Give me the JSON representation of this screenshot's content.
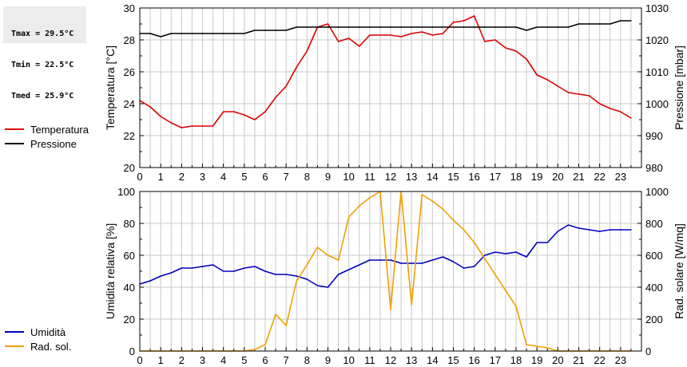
{
  "stats": {
    "tmax": "Tmax = 29.5°C",
    "tmin": "Tmin = 22.5°C",
    "tmed": "Tmed = 25.9°C"
  },
  "colors": {
    "temperature": "#dd0000",
    "pressure": "#000000",
    "humidity": "#0000bb",
    "radiation": "#f0a000",
    "grid": "#c8c8c8"
  },
  "chart_data": [
    {
      "type": "line",
      "x_ticks": [
        "0",
        "1",
        "2",
        "3",
        "4",
        "5",
        "6",
        "7",
        "8",
        "9",
        "10",
        "11",
        "12",
        "13",
        "14",
        "15",
        "16",
        "17",
        "18",
        "19",
        "20",
        "21",
        "22",
        "23"
      ],
      "xlim": [
        0,
        24
      ],
      "ylabel": "Temperatura [°C]",
      "ylim": [
        20,
        30
      ],
      "y_ticks": [
        "20",
        "22",
        "24",
        "26",
        "28",
        "30"
      ],
      "y2label": "Pressione [mbar]",
      "y2lim": [
        980,
        1030
      ],
      "y2_ticks": [
        "980",
        "990",
        "1000",
        "1010",
        "1020",
        "1030"
      ],
      "grid": true,
      "legend_position": "left",
      "series": [
        {
          "name": "Temperatura",
          "axis": "left",
          "x": [
            0,
            0.5,
            1,
            1.5,
            2,
            2.5,
            3,
            3.5,
            4,
            4.5,
            5,
            5.5,
            6,
            6.5,
            7,
            7.5,
            8,
            8.5,
            9,
            9.5,
            10,
            10.5,
            11,
            11.5,
            12,
            12.5,
            13,
            13.5,
            14,
            14.5,
            15,
            15.5,
            16,
            16.5,
            17,
            17.5,
            18,
            18.5,
            19,
            19.5,
            20,
            20.5,
            21,
            21.5,
            22,
            22.5,
            23,
            23.5
          ],
          "values": [
            24.2,
            23.8,
            23.2,
            22.8,
            22.5,
            22.6,
            22.6,
            22.6,
            23.5,
            23.5,
            23.3,
            23.0,
            23.5,
            24.4,
            25.1,
            26.3,
            27.3,
            28.8,
            29.0,
            27.9,
            28.1,
            27.6,
            28.3,
            28.3,
            28.3,
            28.2,
            28.4,
            28.5,
            28.3,
            28.4,
            29.1,
            29.2,
            29.5,
            27.9,
            28.0,
            27.5,
            27.3,
            26.8,
            25.8,
            25.5,
            25.1,
            24.7,
            24.6,
            24.5,
            24.0,
            23.7,
            23.5,
            23.1
          ]
        },
        {
          "name": "Pressione",
          "axis": "right",
          "x": [
            0,
            0.5,
            1,
            1.5,
            2,
            2.5,
            3,
            3.5,
            4,
            4.5,
            5,
            5.5,
            6,
            6.5,
            7,
            7.5,
            8,
            8.5,
            9,
            9.5,
            10,
            10.5,
            11,
            11.5,
            12,
            12.5,
            13,
            13.5,
            14,
            14.5,
            15,
            15.5,
            16,
            16.5,
            17,
            17.5,
            18,
            18.5,
            19,
            19.5,
            20,
            20.5,
            21,
            21.5,
            22,
            22.5,
            23,
            23.5
          ],
          "values": [
            1022,
            1022,
            1021,
            1022,
            1022,
            1022,
            1022,
            1022,
            1022,
            1022,
            1022,
            1023,
            1023,
            1023,
            1023,
            1024,
            1024,
            1024,
            1024,
            1024,
            1024,
            1024,
            1024,
            1024,
            1024,
            1024,
            1024,
            1024,
            1024,
            1024,
            1024,
            1024,
            1024,
            1024,
            1024,
            1024,
            1024,
            1023,
            1024,
            1024,
            1024,
            1024,
            1025,
            1025,
            1025,
            1025,
            1026,
            1026
          ]
        }
      ]
    },
    {
      "type": "line",
      "x_ticks": [
        "0",
        "1",
        "2",
        "3",
        "4",
        "5",
        "6",
        "7",
        "8",
        "9",
        "10",
        "11",
        "12",
        "13",
        "14",
        "15",
        "16",
        "17",
        "18",
        "19",
        "20",
        "21",
        "22",
        "23"
      ],
      "xlim": [
        0,
        24
      ],
      "ylabel": "Umidità relativa [%]",
      "ylim": [
        0,
        100
      ],
      "y_ticks": [
        "0",
        "20",
        "40",
        "60",
        "80",
        "100"
      ],
      "y2label": "Rad. solare [W/mq]",
      "y2lim": [
        0,
        1000
      ],
      "y2_ticks": [
        "0",
        "200",
        "400",
        "600",
        "800",
        "1000"
      ],
      "grid": true,
      "legend_position": "left",
      "series": [
        {
          "name": "Umidità",
          "axis": "left",
          "x": [
            0,
            0.5,
            1,
            1.5,
            2,
            2.5,
            3,
            3.5,
            4,
            4.5,
            5,
            5.5,
            6,
            6.5,
            7,
            7.5,
            8,
            8.5,
            9,
            9.5,
            10,
            10.5,
            11,
            11.5,
            12,
            12.5,
            13,
            13.5,
            14,
            14.5,
            15,
            15.5,
            16,
            16.5,
            17,
            17.5,
            18,
            18.5,
            19,
            19.5,
            20,
            20.5,
            21,
            21.5,
            22,
            22.5,
            23,
            23.5
          ],
          "values": [
            42,
            44,
            47,
            49,
            52,
            52,
            53,
            54,
            50,
            50,
            52,
            53,
            50,
            48,
            48,
            47,
            45,
            41,
            40,
            48,
            51,
            54,
            57,
            57,
            57,
            55,
            55,
            55,
            57,
            59,
            56,
            52,
            53,
            60,
            62,
            61,
            62,
            59,
            68,
            68,
            75,
            79,
            77,
            76,
            75,
            76,
            76,
            76
          ]
        },
        {
          "name": "Rad. sol.",
          "axis": "right",
          "x": [
            0,
            0.5,
            1,
            1.5,
            2,
            2.5,
            3,
            3.5,
            4,
            4.5,
            5,
            5.5,
            6,
            6.5,
            7,
            7.5,
            8,
            8.5,
            9,
            9.5,
            10,
            10.5,
            11,
            11.5,
            12,
            12.5,
            13,
            13.5,
            14,
            14.5,
            15,
            15.5,
            16,
            16.5,
            17,
            17.5,
            18,
            18.5,
            19,
            19.5,
            20,
            20.5,
            21,
            21.5,
            22,
            22.5,
            23,
            23.5
          ],
          "values": [
            0,
            0,
            0,
            0,
            0,
            0,
            0,
            0,
            0,
            0,
            0,
            10,
            40,
            230,
            160,
            440,
            540,
            650,
            600,
            570,
            840,
            910,
            960,
            1000,
            260,
            1000,
            290,
            980,
            940,
            890,
            820,
            760,
            680,
            580,
            480,
            380,
            280,
            40,
            30,
            20,
            0,
            0,
            0,
            0,
            0,
            0,
            0,
            0
          ]
        }
      ]
    }
  ]
}
